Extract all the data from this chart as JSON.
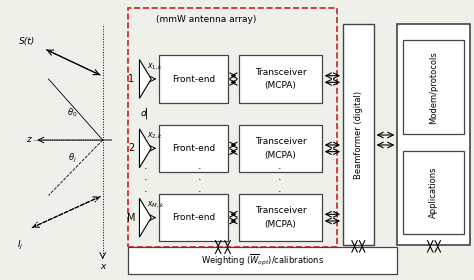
{
  "bg_color": "#f0f0eb",
  "box_face": "#ffffff",
  "box_edge": "#444444",
  "dashed_color": "#cc2222",
  "title": "(mmW antenna array)",
  "frontend_label": "Front-end",
  "transceiver_line1": "Transceiver",
  "transceiver_line2": "(MCPA)",
  "beamformer_label": "Beamformer (digital)",
  "modem_label": "Modem/protocols",
  "apps_label": "Applications",
  "weight_label": "Weighting ($\\overline{W}_{opt}$)/calibrations",
  "signal_label": "S(t)",
  "d_label": "d",
  "z_label": "z",
  "x_label": "x",
  "theta0_label": "$\\theta_0$",
  "thetaj_label": "$\\theta_j$",
  "Ij_label": "$I_j$",
  "row_labels": [
    "1",
    "2",
    "M"
  ],
  "signal_labels": [
    "$x_{1,k}$",
    "$x_{2,k}$",
    "$x_{M,k}$"
  ],
  "dots_label": "...",
  "fig_w": 4.74,
  "fig_h": 2.8,
  "dpi": 100
}
